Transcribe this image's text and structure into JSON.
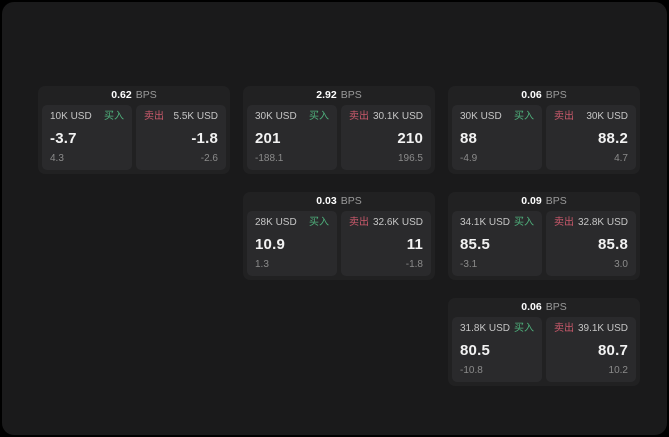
{
  "window": {
    "outer-background": "#000000"
  },
  "colors": {
    "window-bg": "#1a1a1b",
    "card-bg": "#212122",
    "panel-bg": "#2a2a2c",
    "buy-green": "#4fb07c",
    "sell-red": "#c9596b",
    "value-white": "#f2f2f2",
    "label-gray": "#c6c6c6",
    "muted-gray": "#8b8b8b"
  },
  "labels": {
    "bps_unit": "BPS"
  },
  "cards": [
    {
      "bps_value": "0.62",
      "grid": {
        "row": 1,
        "col": 1
      },
      "buy": {
        "amount": "10K USD",
        "side_label": "买入",
        "value": "-3.7",
        "change": "4.3"
      },
      "sell": {
        "side_label": "卖出",
        "amount": "5.5K USD",
        "value": "-1.8",
        "change": "-2.6"
      }
    },
    {
      "bps_value": "2.92",
      "grid": {
        "row": 1,
        "col": 2
      },
      "buy": {
        "amount": "30K USD",
        "side_label": "买入",
        "value": "201",
        "change": "-188.1"
      },
      "sell": {
        "side_label": "卖出",
        "amount": "30.1K USD",
        "value": "210",
        "change": "196.5"
      }
    },
    {
      "bps_value": "0.06",
      "grid": {
        "row": 1,
        "col": 3
      },
      "buy": {
        "amount": "30K USD",
        "side_label": "买入",
        "value": "88",
        "change": "-4.9"
      },
      "sell": {
        "side_label": "卖出",
        "amount": "30K USD",
        "value": "88.2",
        "change": "4.7"
      }
    },
    {
      "bps_value": "0.03",
      "grid": {
        "row": 2,
        "col": 2
      },
      "buy": {
        "amount": "28K USD",
        "side_label": "买入",
        "value": "10.9",
        "change": "1.3"
      },
      "sell": {
        "side_label": "卖出",
        "amount": "32.6K USD",
        "value": "11",
        "change": "-1.8"
      }
    },
    {
      "bps_value": "0.09",
      "grid": {
        "row": 2,
        "col": 3
      },
      "buy": {
        "amount": "34.1K USD",
        "side_label": "买入",
        "value": "85.5",
        "change": "-3.1"
      },
      "sell": {
        "side_label": "卖出",
        "amount": "32.8K USD",
        "value": "85.8",
        "change": "3.0"
      }
    },
    {
      "bps_value": "0.06",
      "grid": {
        "row": 3,
        "col": 3
      },
      "buy": {
        "amount": "31.8K USD",
        "side_label": "买入",
        "value": "80.5",
        "change": "-10.8"
      },
      "sell": {
        "side_label": "卖出",
        "amount": "39.1K USD",
        "value": "80.7",
        "change": "10.2"
      }
    }
  ]
}
